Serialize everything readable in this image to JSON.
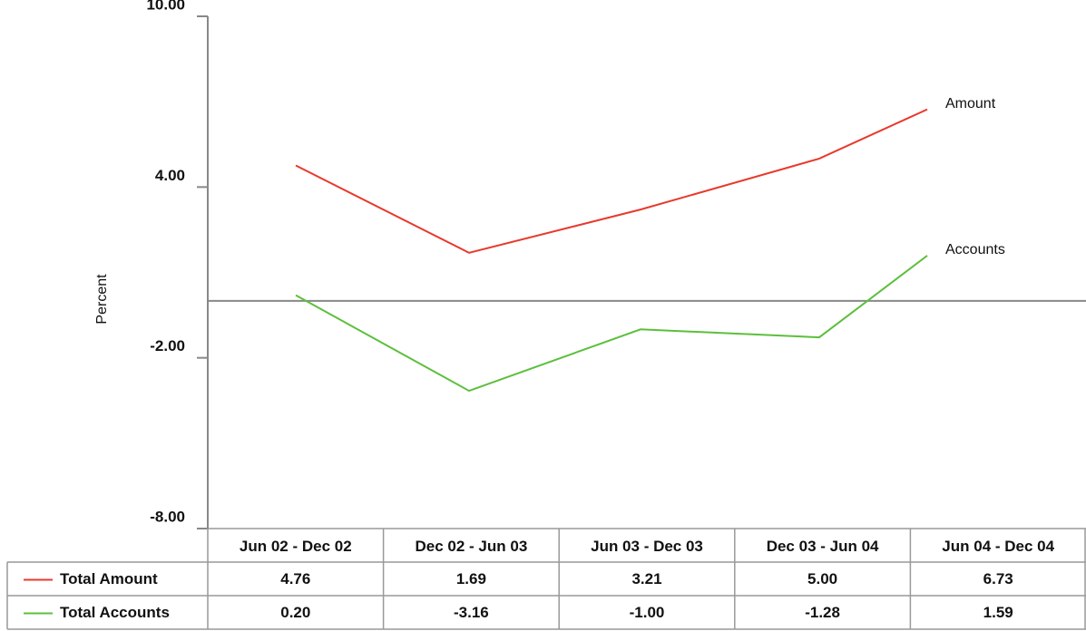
{
  "chart_data": {
    "type": "line",
    "y_label": "Percent",
    "categories": [
      "Jun 02 - Dec 02",
      "Dec 02 - Jun 03",
      "Jun 03 - Dec 03",
      "Dec 03 - Jun 04",
      "Jun 04 - Dec 04"
    ],
    "series": [
      {
        "name": "Total Amount",
        "label": "Amount",
        "color": "#e8392c",
        "values": [
          4.76,
          1.69,
          3.21,
          5.0,
          6.73
        ],
        "value_labels": [
          "4.76",
          "1.69",
          "3.21",
          "5.00",
          "6.73"
        ]
      },
      {
        "name": "Total Accounts",
        "label": "Accounts",
        "color": "#5cbf3c",
        "values": [
          0.2,
          -3.16,
          -1.0,
          -1.28,
          1.59
        ],
        "value_labels": [
          "0.20",
          "-3.16",
          "-1.00",
          "-1.28",
          "1.59"
        ]
      }
    ],
    "ylim": [
      -8,
      10
    ],
    "yticks": [
      {
        "value": -8,
        "label": "-8.00"
      },
      {
        "value": -2,
        "label": "-2.00"
      },
      {
        "value": 4,
        "label": "4.00"
      },
      {
        "value": 10,
        "label": "10.00"
      }
    ]
  }
}
